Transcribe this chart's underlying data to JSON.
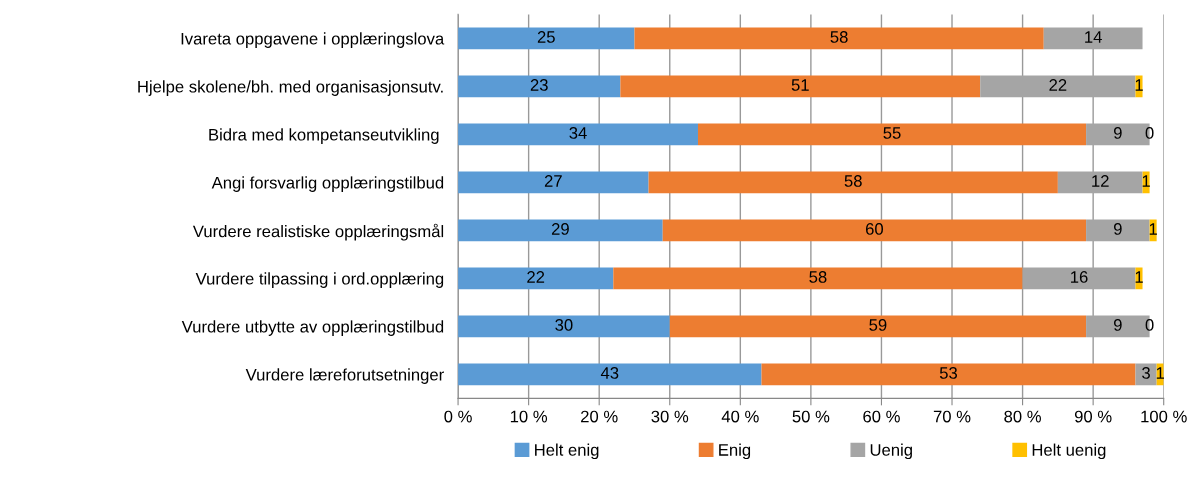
{
  "chart_data": {
    "type": "bar",
    "orientation": "horizontal",
    "stacked": true,
    "categories": [
      "Ivareta oppgavene i opplæringslova",
      "Hjelpe skolene/bh. med organisasjonsutv.",
      "Bidra med kompetanseutvikling ",
      "Angi forsvarlig opplæringstilbud",
      "Vurdere realistiske opplæringsmål",
      "Vurdere tilpassing i ord.opplæring",
      "Vurdere utbytte av opplæringstilbud",
      "Vurdere læreforutsetninger"
    ],
    "series": [
      {
        "name": "Helt enig",
        "color": "#5b9bd5",
        "values": [
          25,
          23,
          34,
          27,
          29,
          22,
          30,
          43
        ]
      },
      {
        "name": "Enig",
        "color": "#ed7d31",
        "values": [
          58,
          51,
          55,
          58,
          60,
          58,
          59,
          53
        ]
      },
      {
        "name": "Uenig",
        "color": "#a5a5a5",
        "values": [
          14,
          22,
          9,
          12,
          9,
          16,
          9,
          3
        ]
      },
      {
        "name": "Helt uenig",
        "color": "#ffc000",
        "values": [
          null,
          1,
          0,
          1,
          1,
          1,
          0,
          1
        ]
      }
    ],
    "data_labels": true,
    "xlim": [
      0,
      100
    ],
    "xticks": [
      {
        "value": 0,
        "label": "0 %"
      },
      {
        "value": 10,
        "label": "10 %"
      },
      {
        "value": 20,
        "label": "20 %"
      },
      {
        "value": 30,
        "label": "30 %"
      },
      {
        "value": 40,
        "label": "40 %"
      },
      {
        "value": 50,
        "label": "50 %"
      },
      {
        "value": 60,
        "label": "60 %"
      },
      {
        "value": 70,
        "label": "70 %"
      },
      {
        "value": 80,
        "label": "80 %"
      },
      {
        "value": 90,
        "label": "90 %"
      },
      {
        "value": 100,
        "label": "100 %"
      }
    ],
    "grid": "x",
    "legend": "bottom"
  }
}
